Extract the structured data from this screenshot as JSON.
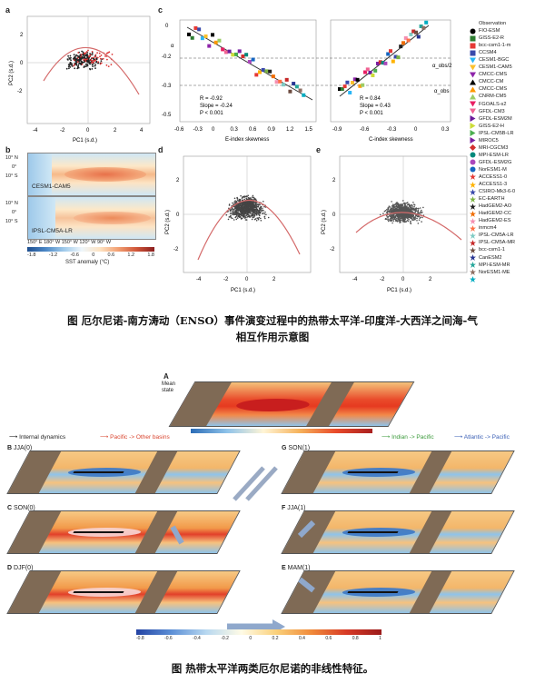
{
  "top_figure": {
    "panel_labels": {
      "a": "a",
      "b": "b",
      "c": "c",
      "d": "d",
      "e": "e"
    },
    "panel_a": {
      "xlabel": "PC1 (s.d.)",
      "ylabel": "PC2 (s.d.)",
      "xticks": [
        "-4",
        "-2",
        "0",
        "2",
        "4"
      ],
      "yticks": [
        "2",
        "0",
        "-2"
      ]
    },
    "panel_b": {
      "map1_label": "CESM1-CAM5",
      "map2_label": "IPSL-CM5A-LR",
      "lat_labels": [
        "10° N",
        "0°",
        "10° S"
      ],
      "lon_labels": "150° E  180° W  150° W  120° W  90° W",
      "colorbar_ticks": [
        "-1.8",
        "-1.2",
        "-0.6",
        "0",
        "0.6",
        "1.2",
        "1.8"
      ],
      "colorbar_label": "SST anomaly (°C)"
    },
    "panel_c": {
      "ylabel": "α",
      "left_xlabel": "E-index skewness",
      "right_xlabel": "C-index skewness",
      "left_xticks": [
        "-0.6",
        "-0.3",
        "0",
        "0.3",
        "0.6",
        "0.9",
        "1.2",
        "1.5"
      ],
      "right_xticks": [
        "-0.9",
        "-0.6",
        "-0.3",
        "0",
        "0.3"
      ],
      "yticks": [
        "0",
        "-0.1",
        "-0.2",
        "-0.3",
        "-0.4",
        "-0.5"
      ],
      "left_stats": [
        "R = -0.92",
        "Slope = -0.24",
        "P < 0.001"
      ],
      "right_stats": [
        "R = 0.84",
        "Slope = 0.43",
        "P < 0.001"
      ],
      "ref_labels": [
        "α_obs/2",
        "α_obs"
      ]
    },
    "panel_d": {
      "xlabel": "PC1 (s.d.)",
      "ylabel": "PC2 (s.d.)",
      "xticks": [
        "-4",
        "-2",
        "0",
        "2"
      ],
      "yticks": [
        "2",
        "0",
        "-2"
      ]
    },
    "panel_e": {
      "xlabel": "PC1 (s.d.)",
      "ylabel": "PC2 (s.d.)",
      "xticks": [
        "-4",
        "-2",
        "0",
        "2"
      ],
      "yticks": [
        "2",
        "0",
        "-2"
      ]
    },
    "legend": [
      {
        "name": "Observation",
        "color": "#000000",
        "shape": "circle"
      },
      {
        "name": "FIO-ESM",
        "color": "#2e7d32",
        "shape": "square"
      },
      {
        "name": "GISS-E2-R",
        "color": "#e53935",
        "shape": "square"
      },
      {
        "name": "bcc-csm1-1-m",
        "color": "#3949ab",
        "shape": "square"
      },
      {
        "name": "CCSM4",
        "color": "#29b6f6",
        "shape": "tri-down"
      },
      {
        "name": "CESM1-BGC",
        "color": "#fbc02d",
        "shape": "tri-down"
      },
      {
        "name": "CESM1-CAM5",
        "color": "#8e24aa",
        "shape": "tri-down"
      },
      {
        "name": "CMCC-CMS",
        "color": "#000000",
        "shape": "tri-up"
      },
      {
        "name": "CMCC-CM",
        "color": "#ff9800",
        "shape": "tri-up"
      },
      {
        "name": "CMCC-CMS",
        "color": "#9ccc65",
        "shape": "tri-up"
      },
      {
        "name": "CNRM-CM5",
        "color": "#e91e63",
        "shape": "tri-down"
      },
      {
        "name": "FGOALS-s2",
        "color": "#f06292",
        "shape": "tri-down"
      },
      {
        "name": "GFDL-CM3",
        "color": "#6a1b9a",
        "shape": "tri-right"
      },
      {
        "name": "GFDL-ESM2M",
        "color": "#cddc39",
        "shape": "tri-right"
      },
      {
        "name": "GISS-E2-H",
        "color": "#4caf50",
        "shape": "tri-right"
      },
      {
        "name": "IPSL-CM5B-LR",
        "color": "#7b1fa2",
        "shape": "tri-right"
      },
      {
        "name": "MIROC5",
        "color": "#d32f2f",
        "shape": "diamond"
      },
      {
        "name": "MRI-CGCM3",
        "color": "#00897b",
        "shape": "circle"
      },
      {
        "name": "MPI-ESM-LR",
        "color": "#ab47bc",
        "shape": "circle"
      },
      {
        "name": "GFDL-ESM2G",
        "color": "#1565c0",
        "shape": "circle"
      },
      {
        "name": "NorESM1-M",
        "color": "#e53935",
        "shape": "star"
      },
      {
        "name": "ACCESS1-0",
        "color": "#ffb300",
        "shape": "star"
      },
      {
        "name": "ACCESS1-3",
        "color": "#3949ab",
        "shape": "star"
      },
      {
        "name": "CSIRO-Mk3-6-0",
        "color": "#7cb342",
        "shape": "star"
      },
      {
        "name": "EC-EARTH",
        "color": "#212121",
        "shape": "star"
      },
      {
        "name": "HadGEM2-AO",
        "color": "#ef6c00",
        "shape": "star"
      },
      {
        "name": "HadGEM2-CC",
        "color": "#f48fb1",
        "shape": "star"
      },
      {
        "name": "HadGEM2-ES",
        "color": "#ff7043",
        "shape": "star"
      },
      {
        "name": "inmcm4",
        "color": "#80cbc4",
        "shape": "star"
      },
      {
        "name": "IPSL-CM5A-LR",
        "color": "#c62828",
        "shape": "star"
      },
      {
        "name": "IPSL-CM5A-MR",
        "color": "#6d4c41",
        "shape": "star"
      },
      {
        "name": "bcc-csm1-1",
        "color": "#283593",
        "shape": "star"
      },
      {
        "name": "CanESM2",
        "color": "#26a69a",
        "shape": "star"
      },
      {
        "name": "MPI-ESM-MR",
        "color": "#8d6e63",
        "shape": "star"
      },
      {
        "name": "NorESM1-ME",
        "color": "#00acc1",
        "shape": "star"
      }
    ]
  },
  "caption1": {
    "line1": "图    厄尔尼诺-南方涛动（ENSO）事件演变过程中的热带太平洋-印度洋-大西洋之间海-气",
    "line2": "相互作用示意图"
  },
  "bottom_figure": {
    "panel_A": "A",
    "panel_A_sub": "Mean\nstate",
    "panels": [
      {
        "id": "B",
        "label": "JJA(0)"
      },
      {
        "id": "C",
        "label": "SON(0)"
      },
      {
        "id": "D",
        "label": "DJF(0)"
      },
      {
        "id": "G",
        "label": "SON(1)"
      },
      {
        "id": "F",
        "label": "JJA(1)"
      },
      {
        "id": "E",
        "label": "MAM(1)"
      }
    ],
    "arrow_legend": {
      "internal": "Internal dynamics",
      "pacific": "Pacific -> Other basins",
      "indian": "Indian -> Pacific",
      "atlantic": "Atlantic -> Pacific"
    },
    "colorbar_ticks": [
      "-0.8",
      "-0.6",
      "-0.4",
      "-0.2",
      "0",
      "0.2",
      "0.4",
      "0.6",
      "0.8",
      "1"
    ]
  },
  "caption2": "图    热带太平洋两类厄尔尼诺的非线性特征。",
  "colors": {
    "accent_red": "#c0392b",
    "accent_blue": "#2c6fbb",
    "warm": "#f0a030",
    "cool": "#7fb2e0"
  }
}
